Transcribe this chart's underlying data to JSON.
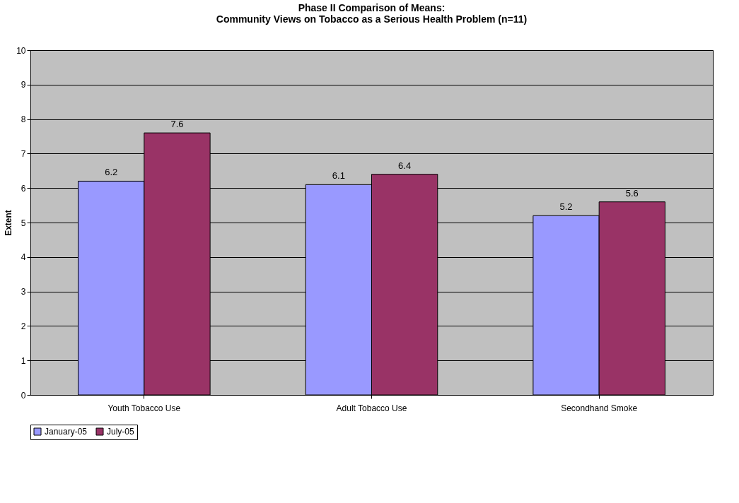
{
  "chart_data": {
    "type": "bar",
    "title": [
      "Phase II Comparison of Means:",
      "Community Views on Tobacco as a Serious Health Problem (n=11)"
    ],
    "ylabel": "Extent",
    "categories": [
      "Youth Tobacco Use",
      "Adult Tobacco Use",
      "Secondhand Smoke"
    ],
    "series": [
      {
        "name": "January-05",
        "color": "#9999ff",
        "values": [
          6.2,
          6.1,
          5.2
        ]
      },
      {
        "name": "July-05",
        "color": "#993366",
        "values": [
          7.6,
          6.4,
          5.6
        ]
      }
    ],
    "ylim": [
      0,
      10
    ],
    "yticks": [
      0,
      1,
      2,
      3,
      4,
      5,
      6,
      7,
      8,
      9,
      10
    ],
    "grid": "y",
    "legend": "bottom",
    "data_labels": true
  }
}
